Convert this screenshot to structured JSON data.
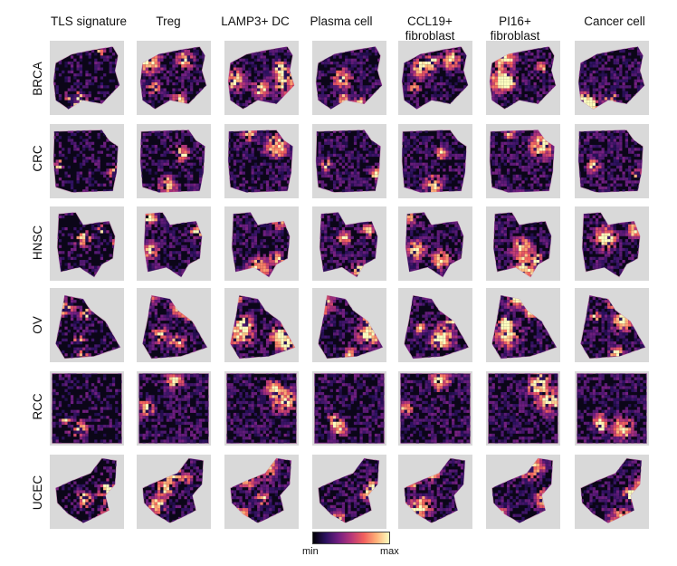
{
  "figure": {
    "columns": [
      "TLS signature",
      "Treg",
      "LAMP3+ DC",
      "Plasma cell",
      "CCL19+\nfibroblast",
      "PI16+\nfibroblast",
      "Cancer cell"
    ],
    "rows": [
      "BRCA",
      "CRC",
      "HNSC",
      "OV",
      "RCC",
      "UCEC"
    ],
    "colorbar": {
      "min_label": "min",
      "max_label": "max",
      "colormap": "magma",
      "stops": [
        "#000004",
        "#2c115f",
        "#721f81",
        "#b73779",
        "#f1605d",
        "#feb078",
        "#fcfdbf"
      ]
    },
    "background_color": "#d9d9d9",
    "tissue_base_color": "#0b0618"
  }
}
